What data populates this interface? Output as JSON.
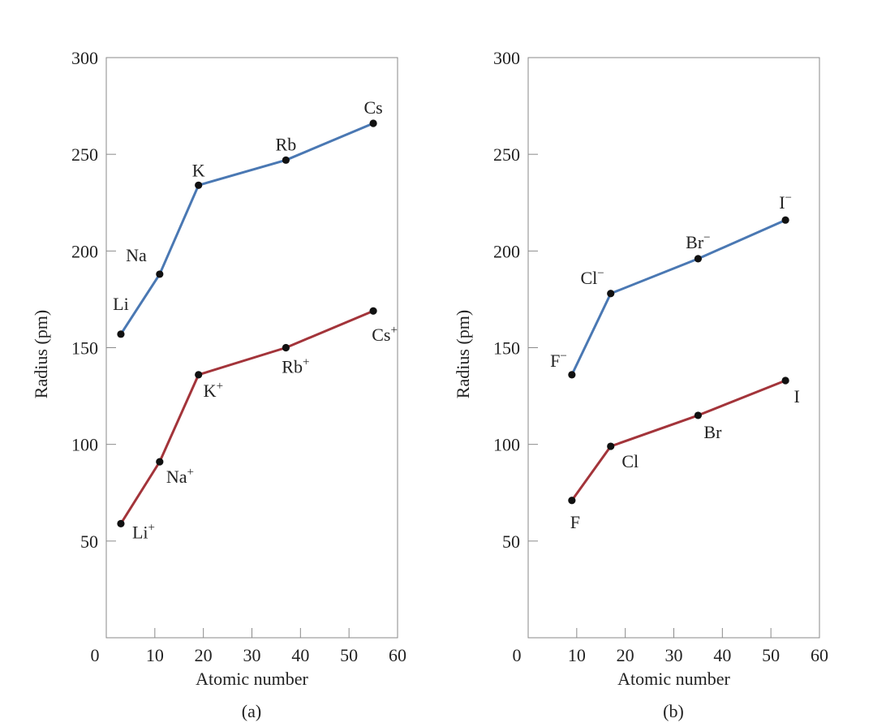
{
  "chart_data": [
    {
      "type": "line",
      "panel_caption": "(a)",
      "xlabel": "Atomic number",
      "ylabel": "Radius (pm)",
      "xlim": [
        0,
        60
      ],
      "ylim": [
        0,
        300
      ],
      "xticks": [
        "0",
        "10",
        "20",
        "30",
        "40",
        "50",
        "60"
      ],
      "yticks": [
        "50",
        "100",
        "150",
        "200",
        "250",
        "300"
      ],
      "grid": false,
      "series": [
        {
          "color": "#4a78b3",
          "points": [
            {
              "x": 3,
              "y": 157,
              "label": "Li",
              "sup": ""
            },
            {
              "x": 11,
              "y": 188,
              "label": "Na",
              "sup": ""
            },
            {
              "x": 19,
              "y": 234,
              "label": "K",
              "sup": ""
            },
            {
              "x": 37,
              "y": 247,
              "label": "Rb",
              "sup": ""
            },
            {
              "x": 55,
              "y": 266,
              "label": "Cs",
              "sup": ""
            }
          ]
        },
        {
          "color": "#a3343a",
          "points": [
            {
              "x": 3,
              "y": 59,
              "label": "Li",
              "sup": "+"
            },
            {
              "x": 11,
              "y": 91,
              "label": "Na",
              "sup": "+"
            },
            {
              "x": 19,
              "y": 136,
              "label": "K",
              "sup": "+"
            },
            {
              "x": 37,
              "y": 150,
              "label": "Rb",
              "sup": "+"
            },
            {
              "x": 55,
              "y": 169,
              "label": "Cs",
              "sup": "+"
            }
          ]
        }
      ]
    },
    {
      "type": "line",
      "panel_caption": "(b)",
      "xlabel": "Atomic number",
      "ylabel": "Radius (pm)",
      "xlim": [
        0,
        60
      ],
      "ylim": [
        0,
        300
      ],
      "xticks": [
        "0",
        "10",
        "20",
        "30",
        "40",
        "50",
        "60"
      ],
      "yticks": [
        "50",
        "100",
        "150",
        "200",
        "250",
        "300"
      ],
      "grid": false,
      "series": [
        {
          "color": "#4a78b3",
          "points": [
            {
              "x": 9,
              "y": 136,
              "label": "F",
              "sup": "−"
            },
            {
              "x": 17,
              "y": 178,
              "label": "Cl",
              "sup": "−"
            },
            {
              "x": 35,
              "y": 196,
              "label": "Br",
              "sup": "−"
            },
            {
              "x": 53,
              "y": 216,
              "label": "I",
              "sup": "−"
            }
          ]
        },
        {
          "color": "#a3343a",
          "points": [
            {
              "x": 9,
              "y": 71,
              "label": "F",
              "sup": ""
            },
            {
              "x": 17,
              "y": 99,
              "label": "Cl",
              "sup": ""
            },
            {
              "x": 35,
              "y": 115,
              "label": "Br",
              "sup": ""
            },
            {
              "x": 53,
              "y": 133,
              "label": "I",
              "sup": ""
            }
          ]
        }
      ]
    }
  ]
}
